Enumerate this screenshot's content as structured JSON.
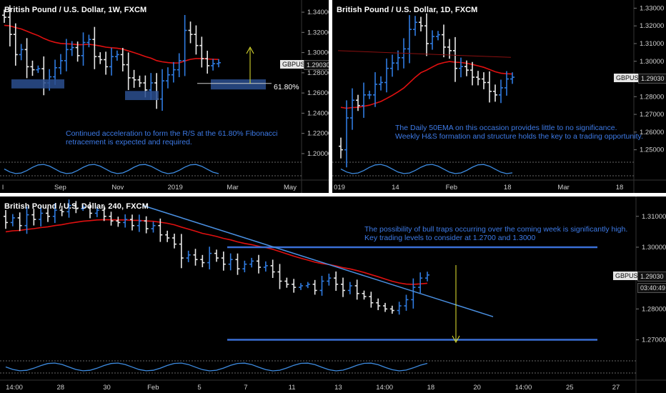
{
  "colors": {
    "up": "#2f7be0",
    "down": "#e8e8e8",
    "ema": "#e01010",
    "trend": "#4a90e2",
    "level": "#3a6fd6",
    "arrow": "#e8e830",
    "osc": "#3d8be0"
  },
  "panels": [
    {
      "id": "weekly",
      "title": "British Pound / U.S. Dollar, 1W, FXCM",
      "annotation_line1": "Continued acceleration to form the R/S at the 61.80% Fibonacci",
      "annotation_line2": "retracement is expected and required.",
      "price_badge": {
        "symbol": "GBPUSD",
        "price": "1.29030"
      },
      "fib_label": "61.80%"
    },
    {
      "id": "daily",
      "title": "British Pound / U.S. Dollar, 1D, FXCM",
      "annotation_line1": "The Daily 50EMA on this occasion provides little to no significance.",
      "annotation_line2": "Weekly H&S formation and structure holds the key to a trading opportunity.",
      "price_badge": {
        "symbol": "GBPUSD",
        "price": "1.29030"
      }
    },
    {
      "id": "h4",
      "title": "British Pound / U.S. Dollar, 240, FXCM",
      "annotation_line1": "The possibility of bull traps occurring over the coming week is significantly high.",
      "annotation_line2": "Key trading levels to consider at 1.2700 and 1.3000",
      "price_badge": {
        "symbol": "GBPUSD",
        "price": "1.29030"
      },
      "countdown": "03:40:49"
    }
  ],
  "chart_data": [
    {
      "type": "candlestick",
      "title": "British Pound / U.S. Dollar, 1W, FXCM",
      "x_ticks": [
        "l",
        "Sep",
        "Nov",
        "2019",
        "Mar",
        "May"
      ],
      "y_ticks": [
        "1.34000",
        "1.32000",
        "1.30000",
        "1.28000",
        "1.26000",
        "1.24000",
        "1.22000",
        "1.20000"
      ],
      "ylim": [
        1.195,
        1.345
      ],
      "last_price": 1.2903,
      "fibonacci_level": {
        "label": "61.80%",
        "value": 1.2695
      },
      "zones": [
        {
          "from": 1.2645,
          "to": 1.2735
        },
        {
          "from": 1.253,
          "to": 1.262
        },
        {
          "from": 1.2635,
          "to": 1.2735
        }
      ],
      "moving_average": "red EMA",
      "closes": [
        1.335,
        1.318,
        1.298,
        1.303,
        1.286,
        1.283,
        1.284,
        1.27,
        1.276,
        1.285,
        1.292,
        1.303,
        1.305,
        1.297,
        1.31,
        1.313,
        1.296,
        1.293,
        1.286,
        1.296,
        1.298,
        1.288,
        1.275,
        1.273,
        1.27,
        1.263,
        1.27,
        1.254,
        1.272,
        1.278,
        1.283,
        1.292,
        1.322,
        1.318,
        1.307,
        1.294,
        1.287,
        1.289,
        1.29
      ]
    },
    {
      "type": "candlestick",
      "title": "British Pound / U.S. Dollar, 1D, FXCM",
      "x_ticks": [
        "019",
        "14",
        "Feb",
        "18",
        "Mar",
        "18"
      ],
      "y_ticks": [
        "1.33000",
        "1.32000",
        "1.31000",
        "1.30000",
        "1.29030",
        "1.28000",
        "1.27000",
        "1.26000",
        "1.25000"
      ],
      "ylim": [
        1.245,
        1.333
      ],
      "last_price": 1.2903,
      "moving_average": "red 50EMA",
      "closes": [
        1.25,
        1.268,
        1.278,
        1.275,
        1.281,
        1.281,
        1.287,
        1.288,
        1.296,
        1.299,
        1.302,
        1.307,
        1.318,
        1.322,
        1.32,
        1.31,
        1.314,
        1.315,
        1.308,
        1.306,
        1.296,
        1.297,
        1.295,
        1.291,
        1.29,
        1.288,
        1.283,
        1.281,
        1.285,
        1.29,
        1.291
      ]
    },
    {
      "type": "candlestick",
      "title": "British Pound / U.S. Dollar, 240, FXCM",
      "x_ticks": [
        "14:00",
        "28",
        "30",
        "Feb",
        "5",
        "7",
        "11",
        "13",
        "14:00",
        "18",
        "20",
        "14:00",
        "25",
        "27"
      ],
      "y_ticks": [
        "1.31000",
        "1.30000",
        "1.29030",
        "1.28000",
        "1.27000"
      ],
      "ylim": [
        1.2655,
        1.3155
      ],
      "last_price": 1.2903,
      "levels": [
        1.3,
        1.27
      ],
      "trendline": {
        "from": 1.3135,
        "to": 1.2775
      },
      "countdown": "03:40:49",
      "closes": [
        1.308,
        1.3095,
        1.307,
        1.3105,
        1.309,
        1.311,
        1.31,
        1.312,
        1.3115,
        1.3135,
        1.3125,
        1.313,
        1.311,
        1.312,
        1.31,
        1.3085,
        1.308,
        1.309,
        1.307,
        1.3085,
        1.306,
        1.307,
        1.304,
        1.303,
        1.301,
        1.2965,
        1.2975,
        1.296,
        1.295,
        1.298,
        1.2965,
        1.2945,
        1.296,
        1.293,
        1.2945,
        1.2955,
        1.2935,
        1.294,
        1.292,
        1.289,
        1.288,
        1.287,
        1.2875,
        1.288,
        1.286,
        1.289,
        1.29,
        1.288,
        1.286,
        1.2875,
        1.285,
        1.284,
        1.282,
        1.281,
        1.28,
        1.2795,
        1.281,
        1.283,
        1.287,
        1.29,
        1.291
      ]
    }
  ]
}
